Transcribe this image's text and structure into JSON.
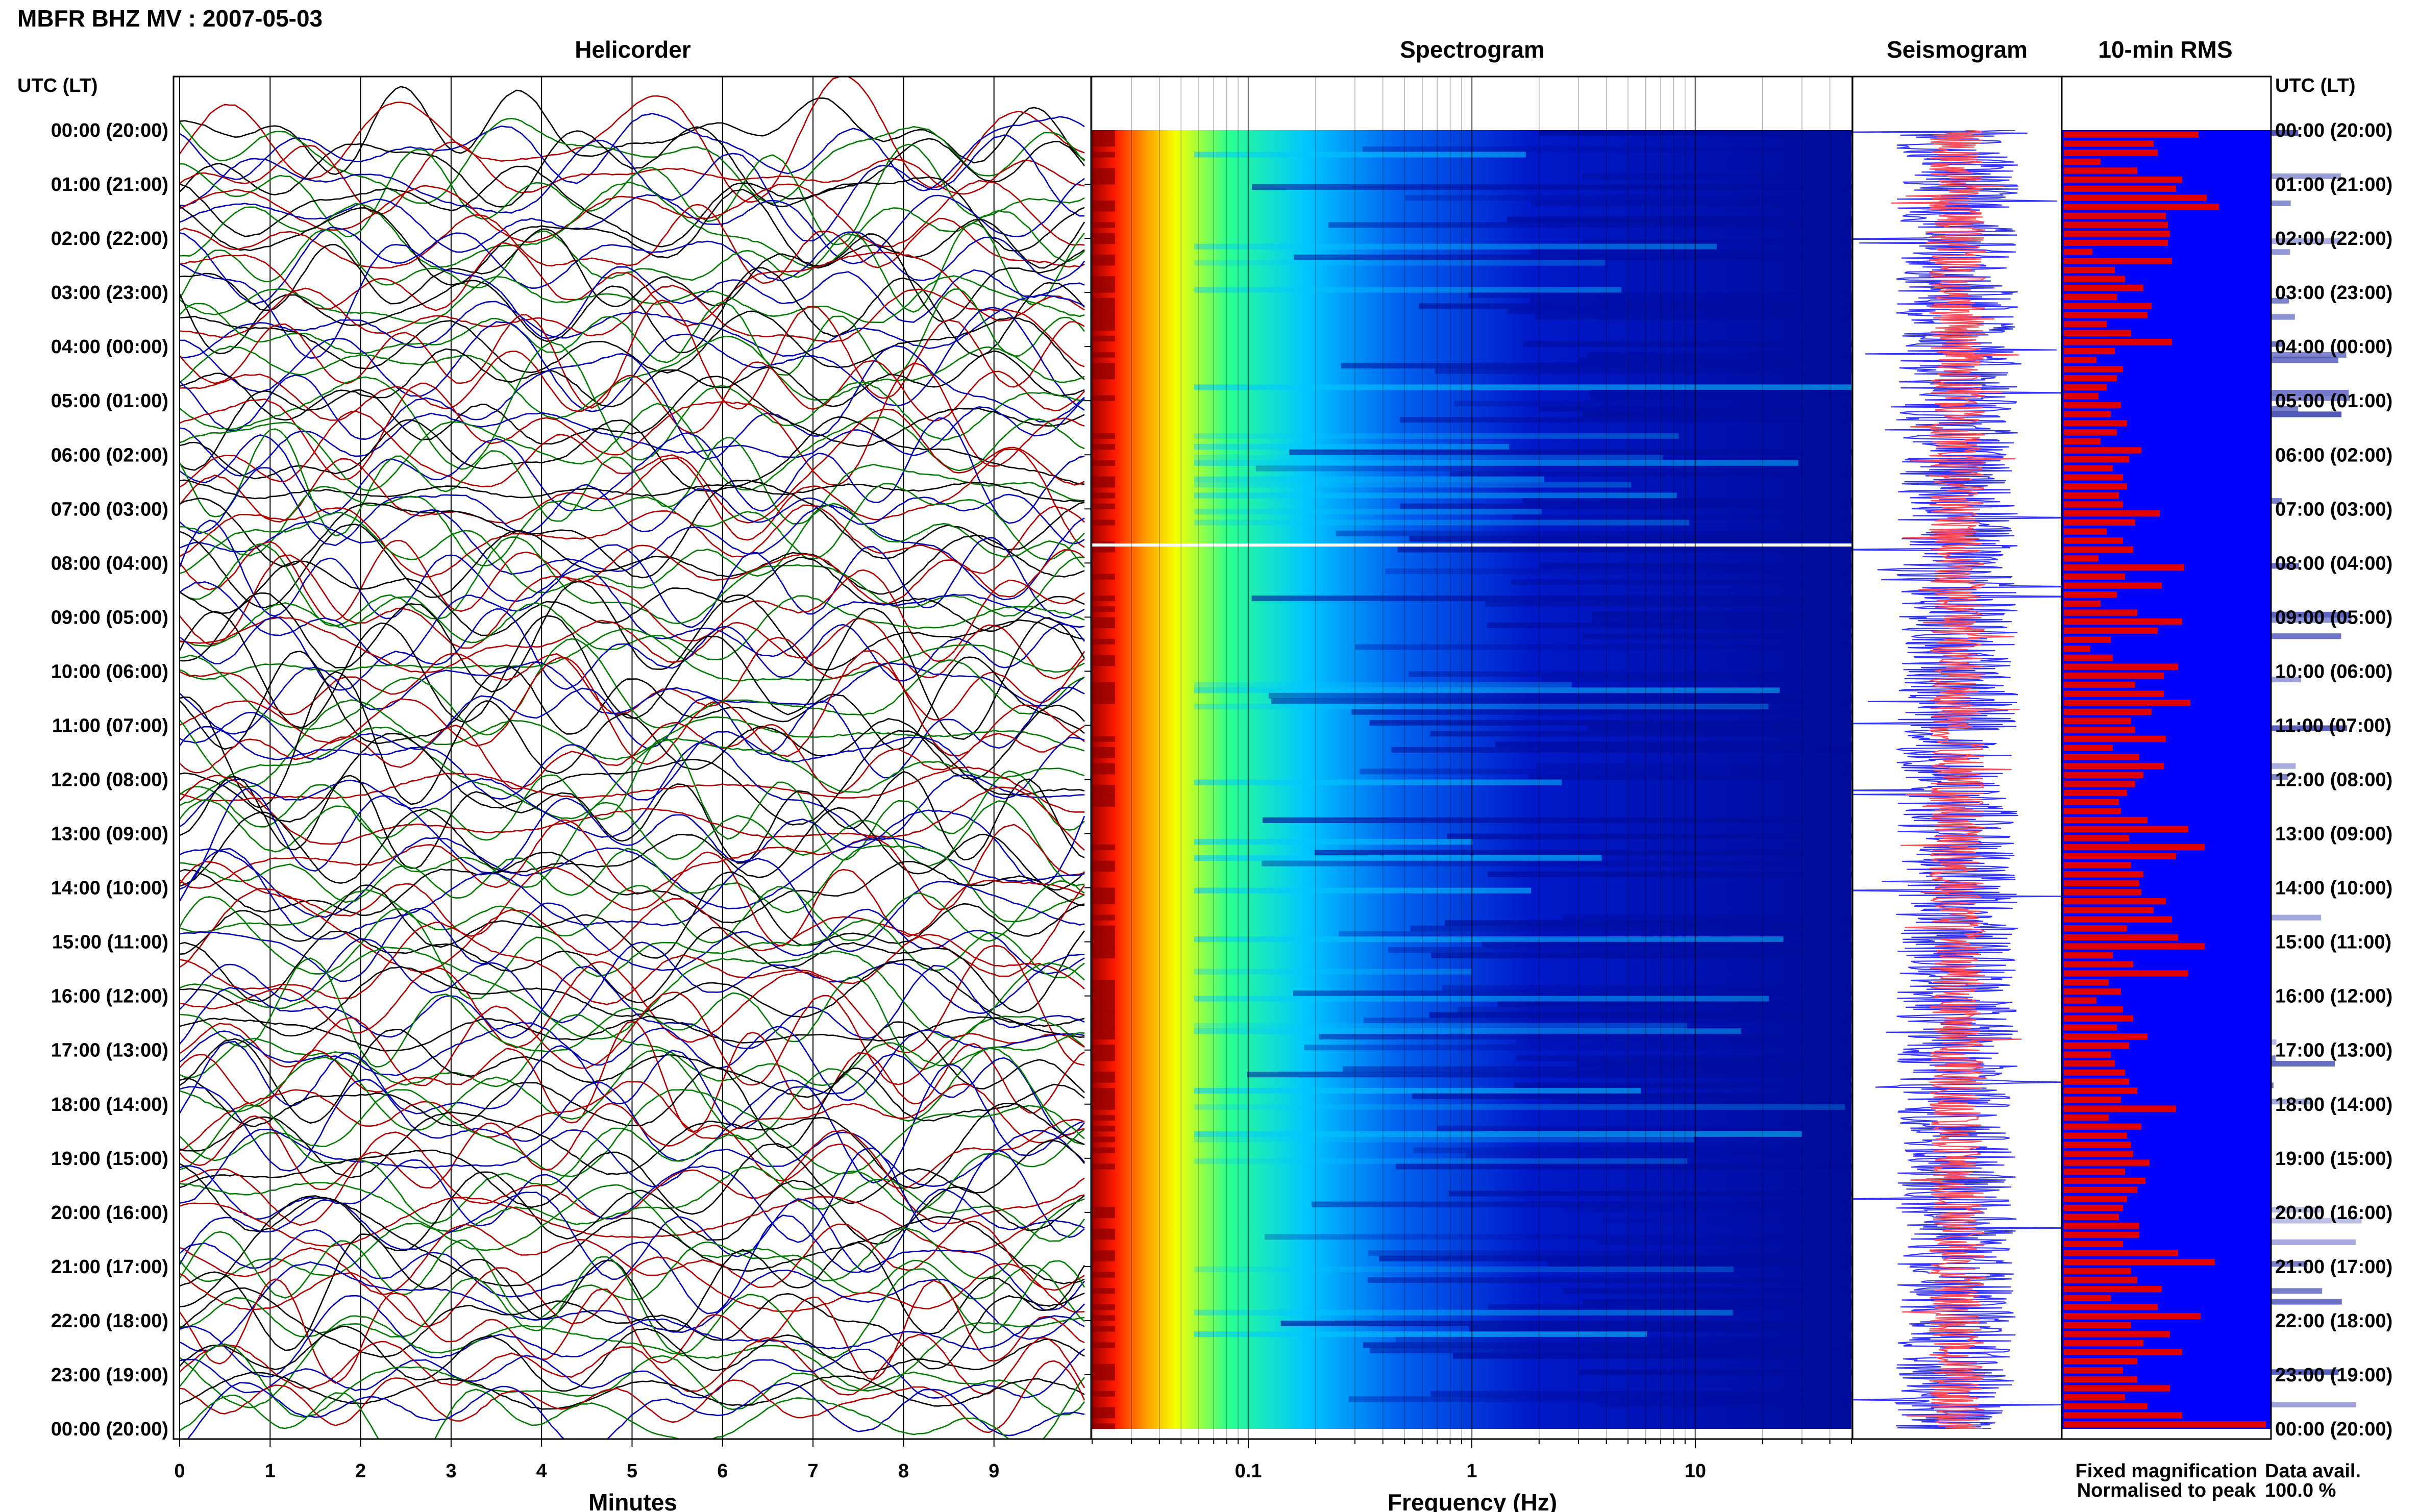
{
  "figure": {
    "title": "MBFR BHZ MV : 2007-05-03",
    "panel_titles": {
      "helicorder": "Helicorder",
      "spectrogram": "Spectrogram",
      "seismogram": "Seismogram",
      "rms": "10-min RMS"
    },
    "left_axis_header": "UTC (LT)",
    "right_axis_header": "UTC (LT)",
    "legend": {
      "fixed": "Fixed magnification",
      "normalised": "Normalised to peak",
      "fixed_color": "#1a1aff",
      "normalised_color": "#ff2020"
    },
    "data_avail_label": "Data avail.",
    "data_avail_value": "100.0 %",
    "colors": {
      "helicorder_traces": [
        "#000000",
        "#b00000",
        "#0000b0",
        "#007a00"
      ],
      "seismo_fixed": "#3333ff",
      "seismo_norm": "#ff4d5a",
      "rms_bg": "#0000ff",
      "rms_bar": "#e00000",
      "spectrogram_gap": "#ffffff"
    }
  },
  "chart_data": [
    {
      "type": "line",
      "name": "helicorder",
      "xlabel": "Minutes",
      "x_ticks": [
        "0",
        "1",
        "2",
        "3",
        "4",
        "5",
        "6",
        "7",
        "8",
        "9"
      ],
      "xlim": [
        0,
        10
      ],
      "time_labels": [
        "00:00 (20:00)",
        "01:00 (21:00)",
        "02:00 (22:00)",
        "03:00 (23:00)",
        "04:00 (00:00)",
        "05:00 (01:00)",
        "06:00 (02:00)",
        "07:00 (03:00)",
        "08:00 (04:00)",
        "09:00 (05:00)",
        "10:00 (06:00)",
        "11:00 (07:00)",
        "12:00 (08:00)",
        "13:00 (09:00)",
        "14:00 (10:00)",
        "15:00 (11:00)",
        "16:00 (12:00)",
        "17:00 (13:00)",
        "18:00 (14:00)",
        "19:00 (15:00)",
        "20:00 (16:00)",
        "21:00 (17:00)",
        "22:00 (18:00)",
        "23:00 (19:00)",
        "00:00 (20:00)"
      ],
      "traces_per_hour": 6,
      "trace_count": 144,
      "grid": true
    },
    {
      "type": "heatmap",
      "name": "spectrogram",
      "xlabel": "Frequency (Hz)",
      "x_scale": "log",
      "x_ticks": [
        "0.1",
        "1",
        "10"
      ],
      "xlim": [
        0.02,
        50
      ],
      "colormap": "jet",
      "gap_at": "07:40"
    },
    {
      "type": "line",
      "name": "seismogram",
      "series": [
        {
          "name": "Fixed magnification",
          "color": "#3333ff"
        },
        {
          "name": "Normalised to peak",
          "color": "#ff4d5a"
        }
      ]
    },
    {
      "type": "bar",
      "name": "10-min RMS",
      "orientation": "horizontal",
      "bar_count": 144,
      "values": [
        0.66,
        0.44,
        0.46,
        0.18,
        0.36,
        0.58,
        0.55,
        0.7,
        0.76,
        0.5,
        0.51,
        0.52,
        0.51,
        0.14,
        0.53,
        0.25,
        0.3,
        0.39,
        0.26,
        0.43,
        0.41,
        0.21,
        0.33,
        0.53,
        0.25,
        0.16,
        0.29,
        0.26,
        0.21,
        0.17,
        0.28,
        0.23,
        0.31,
        0.26,
        0.18,
        0.38,
        0.32,
        0.24,
        0.29,
        0.31,
        0.27,
        0.29,
        0.47,
        0.35,
        0.21,
        0.29,
        0.34,
        0.17,
        0.59,
        0.3,
        0.48,
        0.26,
        0.18,
        0.36,
        0.58,
        0.46,
        0.23,
        0.13,
        0.24,
        0.56,
        0.49,
        0.35,
        0.49,
        0.62,
        0.43,
        0.33,
        0.35,
        0.5,
        0.24,
        0.37,
        0.49,
        0.39,
        0.35,
        0.31,
        0.27,
        0.28,
        0.41,
        0.61,
        0.32,
        0.69,
        0.55,
        0.33,
        0.39,
        0.37,
        0.38,
        0.5,
        0.44,
        0.53,
        0.31,
        0.56,
        0.69,
        0.24,
        0.34,
        0.61,
        0.22,
        0.28,
        0.16,
        0.29,
        0.34,
        0.26,
        0.41,
        0.32,
        0.23,
        0.25,
        0.3,
        0.32,
        0.36,
        0.28,
        0.55,
        0.22,
        0.38,
        0.31,
        0.33,
        0.34,
        0.42,
        0.3,
        0.4,
        0.36,
        0.31,
        0.29,
        0.27,
        0.37,
        0.37,
        0.29,
        0.56,
        0.74,
        0.33,
        0.36,
        0.48,
        0.23,
        0.46,
        0.67,
        0.33,
        0.52,
        0.39,
        0.58,
        0.36,
        0.29,
        0.36,
        0.52,
        0.3,
        0.41,
        0.58,
        0.99
      ]
    }
  ]
}
